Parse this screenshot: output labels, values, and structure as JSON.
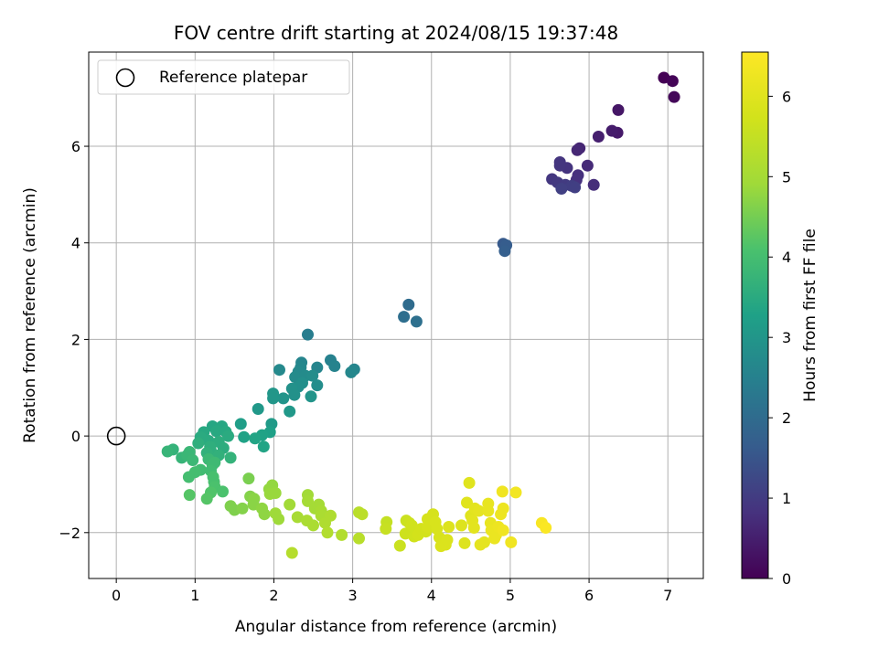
{
  "chart_data": {
    "type": "scatter",
    "title": "FOV centre drift starting at 2024/08/15 19:37:48",
    "xlabel": "Angular distance from reference (arcmin)",
    "ylabel": "Rotation from reference (arcmin)",
    "xlim": [
      -0.35,
      7.45
    ],
    "ylim": [
      -2.95,
      7.95
    ],
    "xticks": [
      0,
      1,
      2,
      3,
      4,
      5,
      6,
      7
    ],
    "yticks": [
      -2,
      0,
      2,
      4,
      6
    ],
    "xtick_labels": [
      "0",
      "1",
      "2",
      "3",
      "4",
      "5",
      "6",
      "7"
    ],
    "ytick_labels": [
      "−2",
      "0",
      "2",
      "4",
      "6"
    ],
    "grid": true,
    "colormap": "viridis",
    "colorbar": {
      "label": "Hours from first FF file",
      "range": [
        0,
        6.55
      ],
      "ticks": [
        0,
        1,
        2,
        3,
        4,
        5,
        6
      ],
      "tick_labels": [
        "0",
        "1",
        "2",
        "3",
        "4",
        "5",
        "6"
      ]
    },
    "legend": {
      "position": "top-left",
      "entries": [
        "Reference platepar"
      ]
    },
    "reference_point": {
      "x": 0,
      "y": 0
    },
    "points": [
      [
        6.95,
        7.42,
        0.0
      ],
      [
        7.06,
        7.35,
        0.05
      ],
      [
        7.08,
        7.02,
        0.1
      ],
      [
        6.37,
        6.75,
        0.35
      ],
      [
        6.36,
        6.28,
        0.4
      ],
      [
        6.29,
        6.32,
        0.45
      ],
      [
        6.12,
        6.2,
        0.5
      ],
      [
        5.88,
        5.96,
        0.6
      ],
      [
        5.85,
        5.92,
        0.65
      ],
      [
        5.98,
        5.6,
        0.7
      ],
      [
        6.06,
        5.2,
        0.75
      ],
      [
        5.86,
        5.4,
        0.8
      ],
      [
        5.84,
        5.3,
        0.82
      ],
      [
        5.72,
        5.55,
        0.85
      ],
      [
        5.63,
        5.67,
        0.88
      ],
      [
        5.63,
        5.6,
        0.9
      ],
      [
        5.53,
        5.32,
        0.92
      ],
      [
        5.6,
        5.25,
        0.95
      ],
      [
        5.7,
        5.2,
        1.0
      ],
      [
        5.78,
        5.18,
        1.05
      ],
      [
        5.82,
        5.15,
        1.08
      ],
      [
        5.65,
        5.12,
        1.1
      ],
      [
        4.91,
        3.98,
        1.6
      ],
      [
        4.95,
        3.95,
        1.65
      ],
      [
        4.93,
        3.83,
        1.7
      ],
      [
        3.71,
        2.72,
        2.0
      ],
      [
        3.65,
        2.47,
        2.05
      ],
      [
        3.81,
        2.37,
        2.1
      ],
      [
        2.43,
        2.1,
        2.4
      ],
      [
        2.72,
        1.57,
        2.5
      ],
      [
        2.77,
        1.45,
        2.55
      ],
      [
        3.02,
        1.38,
        2.6
      ],
      [
        2.98,
        1.32,
        2.65
      ],
      [
        2.55,
        1.42,
        2.6
      ],
      [
        2.35,
        1.52,
        2.6
      ],
      [
        2.34,
        1.42,
        2.65
      ],
      [
        2.31,
        1.33,
        2.7
      ],
      [
        2.07,
        1.37,
        2.7
      ],
      [
        2.27,
        1.22,
        2.75
      ],
      [
        2.4,
        1.25,
        2.75
      ],
      [
        2.49,
        1.25,
        2.8
      ],
      [
        2.55,
        1.05,
        2.8
      ],
      [
        2.36,
        1.1,
        2.85
      ],
      [
        2.31,
        1.02,
        2.85
      ],
      [
        2.23,
        0.98,
        2.9
      ],
      [
        2.26,
        0.85,
        2.9
      ],
      [
        2.47,
        0.82,
        2.95
      ],
      [
        2.12,
        0.78,
        2.95
      ],
      [
        1.99,
        0.88,
        3.0
      ],
      [
        1.99,
        0.78,
        3.0
      ],
      [
        1.8,
        0.56,
        3.05
      ],
      [
        2.2,
        0.51,
        3.05
      ],
      [
        1.97,
        0.25,
        3.1
      ],
      [
        1.58,
        0.25,
        3.2
      ],
      [
        1.95,
        0.08,
        3.25
      ],
      [
        1.85,
        0.02,
        3.3
      ],
      [
        1.62,
        -0.02,
        3.3
      ],
      [
        1.87,
        -0.22,
        3.35
      ],
      [
        1.76,
        -0.05,
        3.35
      ],
      [
        1.22,
        0.2,
        3.4
      ],
      [
        1.34,
        0.2,
        3.4
      ],
      [
        1.11,
        0.08,
        3.45
      ],
      [
        1.27,
        0.1,
        3.45
      ],
      [
        1.39,
        0.09,
        3.45
      ],
      [
        1.42,
        0.0,
        3.5
      ],
      [
        1.07,
        -0.02,
        3.5
      ],
      [
        1.17,
        -0.1,
        3.5
      ],
      [
        1.3,
        -0.12,
        3.55
      ],
      [
        1.36,
        -0.25,
        3.55
      ],
      [
        1.04,
        -0.15,
        3.6
      ],
      [
        1.19,
        -0.22,
        3.6
      ],
      [
        1.2,
        -0.3,
        3.6
      ],
      [
        1.15,
        -0.35,
        3.65
      ],
      [
        1.3,
        -0.4,
        3.65
      ],
      [
        1.45,
        -0.45,
        3.7
      ],
      [
        0.72,
        -0.28,
        3.7
      ],
      [
        0.65,
        -0.32,
        3.75
      ],
      [
        0.83,
        -0.45,
        3.75
      ],
      [
        0.93,
        -0.33,
        3.8
      ],
      [
        0.9,
        -0.4,
        3.8
      ],
      [
        0.97,
        -0.5,
        3.85
      ],
      [
        1.17,
        -0.48,
        3.85
      ],
      [
        1.25,
        -0.55,
        3.9
      ],
      [
        1.22,
        -0.6,
        3.9
      ],
      [
        1.07,
        -0.7,
        3.95
      ],
      [
        1.2,
        -0.72,
        3.95
      ],
      [
        1.0,
        -0.75,
        4.0
      ],
      [
        0.92,
        -0.85,
        4.0
      ],
      [
        1.23,
        -0.85,
        4.05
      ],
      [
        1.24,
        -0.95,
        4.05
      ],
      [
        1.25,
        -1.05,
        4.1
      ],
      [
        1.35,
        -1.15,
        4.1
      ],
      [
        1.2,
        -1.17,
        4.15
      ],
      [
        1.15,
        -1.3,
        4.2
      ],
      [
        0.93,
        -1.22,
        4.2
      ],
      [
        1.68,
        -0.88,
        4.55
      ],
      [
        1.45,
        -1.45,
        4.6
      ],
      [
        1.5,
        -1.53,
        4.6
      ],
      [
        1.6,
        -1.5,
        4.65
      ],
      [
        1.7,
        -1.25,
        4.65
      ],
      [
        1.75,
        -1.3,
        4.7
      ],
      [
        1.74,
        -1.42,
        4.7
      ],
      [
        1.85,
        -1.5,
        4.75
      ],
      [
        1.88,
        -1.62,
        4.75
      ],
      [
        1.94,
        -1.1,
        4.8
      ],
      [
        1.98,
        -1.02,
        4.8
      ],
      [
        1.95,
        -1.2,
        4.85
      ],
      [
        2.02,
        -1.18,
        4.85
      ],
      [
        2.02,
        -1.6,
        4.9
      ],
      [
        2.06,
        -1.72,
        4.9
      ],
      [
        2.2,
        -1.42,
        4.95
      ],
      [
        2.43,
        -1.22,
        4.95
      ],
      [
        2.43,
        -1.35,
        5.0
      ],
      [
        2.52,
        -1.5,
        5.0
      ],
      [
        2.57,
        -1.42,
        5.0
      ],
      [
        2.6,
        -1.55,
        5.05
      ],
      [
        2.3,
        -1.68,
        5.05
      ],
      [
        2.42,
        -1.75,
        5.1
      ],
      [
        2.5,
        -1.85,
        5.1
      ],
      [
        2.6,
        -1.65,
        5.1
      ],
      [
        2.65,
        -1.8,
        5.15
      ],
      [
        2.72,
        -1.65,
        5.15
      ],
      [
        2.68,
        -2.0,
        5.2
      ],
      [
        2.86,
        -2.05,
        5.2
      ],
      [
        2.23,
        -2.42,
        5.25
      ],
      [
        3.08,
        -2.12,
        5.3
      ],
      [
        3.08,
        -1.58,
        5.3
      ],
      [
        3.12,
        -1.62,
        5.35
      ],
      [
        3.43,
        -1.78,
        5.5
      ],
      [
        3.42,
        -1.92,
        5.55
      ],
      [
        3.6,
        -2.27,
        5.6
      ],
      [
        3.68,
        -1.75,
        5.6
      ],
      [
        3.67,
        -2.02,
        5.65
      ],
      [
        3.72,
        -1.8,
        5.65
      ],
      [
        3.75,
        -1.85,
        5.7
      ],
      [
        3.78,
        -2.08,
        5.7
      ],
      [
        3.8,
        -1.95,
        5.7
      ],
      [
        3.83,
        -2.05,
        5.75
      ],
      [
        3.87,
        -1.92,
        5.75
      ],
      [
        3.93,
        -1.98,
        5.75
      ],
      [
        3.95,
        -1.88,
        5.8
      ],
      [
        3.95,
        -1.72,
        5.8
      ],
      [
        4.02,
        -1.62,
        5.8
      ],
      [
        4.05,
        -1.78,
        5.85
      ],
      [
        4.07,
        -1.92,
        5.85
      ],
      [
        4.1,
        -2.1,
        5.85
      ],
      [
        4.12,
        -2.28,
        5.9
      ],
      [
        4.18,
        -2.25,
        5.9
      ],
      [
        4.2,
        -2.15,
        5.9
      ],
      [
        4.22,
        -1.88,
        5.95
      ],
      [
        4.38,
        -1.85,
        5.95
      ],
      [
        4.42,
        -2.22,
        5.95
      ],
      [
        4.45,
        -1.38,
        6.0
      ],
      [
        4.48,
        -0.97,
        6.0
      ],
      [
        4.5,
        -1.65,
        6.0
      ],
      [
        4.52,
        -1.75,
        6.05
      ],
      [
        4.54,
        -1.9,
        6.05
      ],
      [
        4.55,
        -1.5,
        6.05
      ],
      [
        4.6,
        -1.55,
        6.1
      ],
      [
        4.62,
        -2.25,
        6.1
      ],
      [
        4.67,
        -2.2,
        6.1
      ],
      [
        4.72,
        -1.4,
        6.15
      ],
      [
        4.72,
        -1.55,
        6.15
      ],
      [
        4.75,
        -1.8,
        6.15
      ],
      [
        4.76,
        -1.95,
        6.2
      ],
      [
        4.8,
        -2.12,
        6.2
      ],
      [
        4.82,
        -2.05,
        6.2
      ],
      [
        4.85,
        -1.88,
        6.25
      ],
      [
        4.88,
        -1.62,
        6.25
      ],
      [
        4.91,
        -1.5,
        6.25
      ],
      [
        4.91,
        -1.95,
        6.3
      ],
      [
        4.9,
        -1.15,
        6.3
      ],
      [
        5.01,
        -2.2,
        6.3
      ],
      [
        5.07,
        -1.17,
        6.35
      ],
      [
        5.4,
        -1.8,
        6.45
      ],
      [
        5.45,
        -1.9,
        6.5
      ]
    ]
  }
}
